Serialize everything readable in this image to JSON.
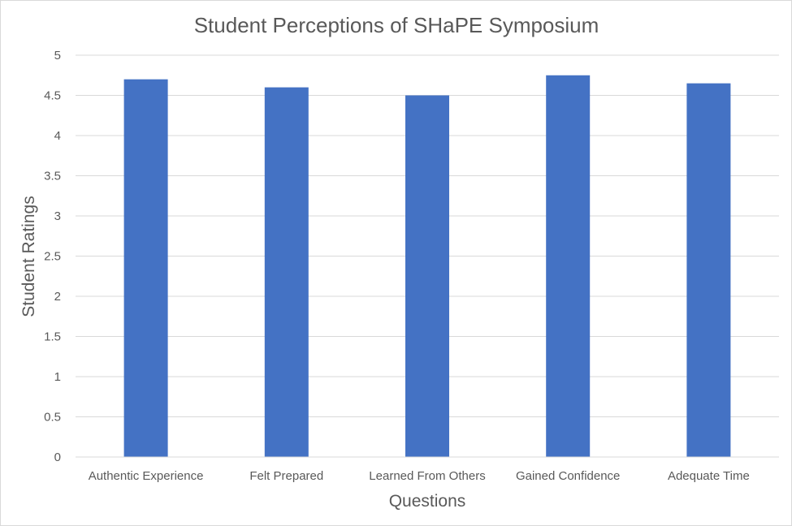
{
  "chart_data": {
    "type": "bar",
    "title": "Student Perceptions of SHaPE Symposium",
    "xlabel": "Questions",
    "ylabel": "Student Ratings",
    "categories": [
      "Authentic Experience",
      "Felt Prepared",
      "Learned From Others",
      "Gained Confidence",
      "Adequate Time"
    ],
    "values": [
      4.7,
      4.6,
      4.5,
      4.75,
      4.65
    ],
    "ylim": [
      0,
      5
    ],
    "yticks": [
      "0",
      "0.5",
      "1",
      "1.5",
      "2",
      "2.5",
      "3",
      "3.5",
      "4",
      "4.5",
      "5"
    ],
    "grid": true,
    "legend": "none",
    "bar_color": "#4472C4",
    "text_color": "#595959",
    "grid_color": "#D9D9D9"
  }
}
